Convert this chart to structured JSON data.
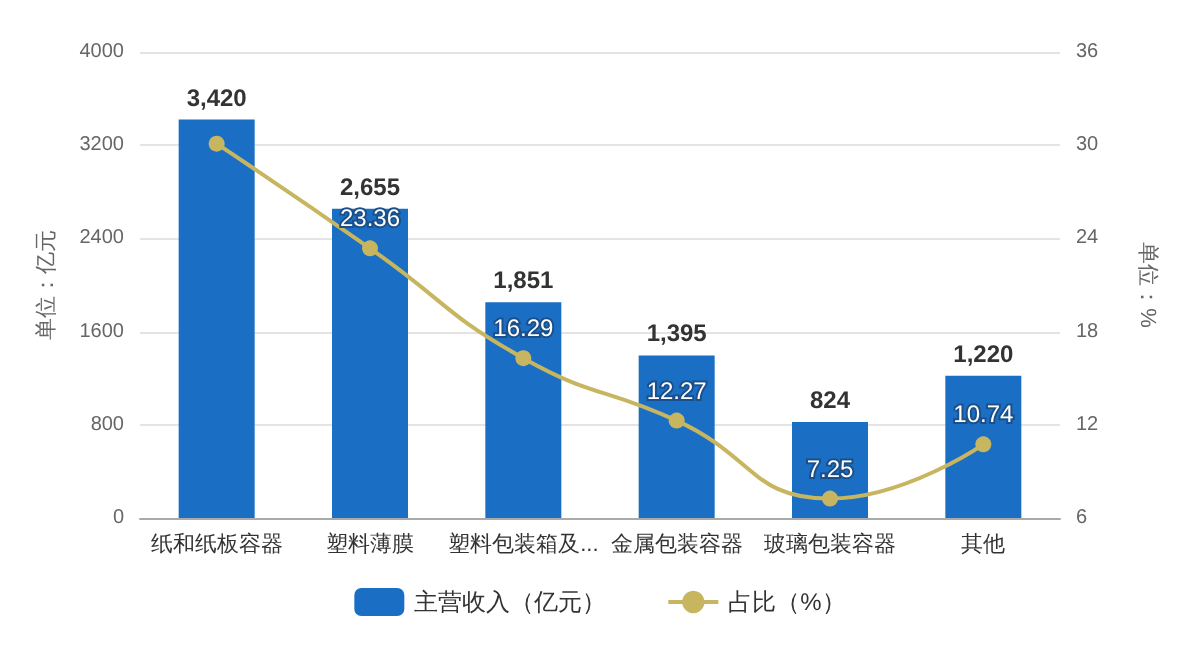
{
  "chart_data": {
    "type": "bar",
    "categories": [
      "纸和纸板容器",
      "塑料薄膜",
      "塑料包装箱及...",
      "金属包装容器",
      "玻璃包装容器",
      "其他"
    ],
    "ylabel": "单位：亿元",
    "y2label": "单位：%",
    "series": [
      {
        "name": "主营收入（亿元）",
        "color": "#1a6fc4",
        "values": [
          3420,
          2655,
          1851,
          1395,
          824,
          1220
        ],
        "value_labels": [
          "3,420",
          "2,655",
          "1,851",
          "1,395",
          "824",
          "1,220"
        ]
      },
      {
        "name": "占比（%）",
        "type": "line",
        "axis": "y2",
        "color": "#c8b560",
        "values": [
          30.1,
          23.36,
          16.29,
          12.27,
          7.25,
          10.74
        ],
        "value_labels": [
          null,
          "23.36",
          "16.29",
          "12.27",
          "7.25",
          "10.74"
        ]
      }
    ],
    "ylim": [
      0,
      4000
    ],
    "yticks": [
      0,
      800,
      1600,
      2400,
      3200,
      4000
    ],
    "y2lim": [
      6,
      36
    ],
    "y2ticks": [
      6,
      12,
      18,
      24,
      30,
      36
    ],
    "grid": "y",
    "legend": "bottom",
    "marker": "circle"
  }
}
